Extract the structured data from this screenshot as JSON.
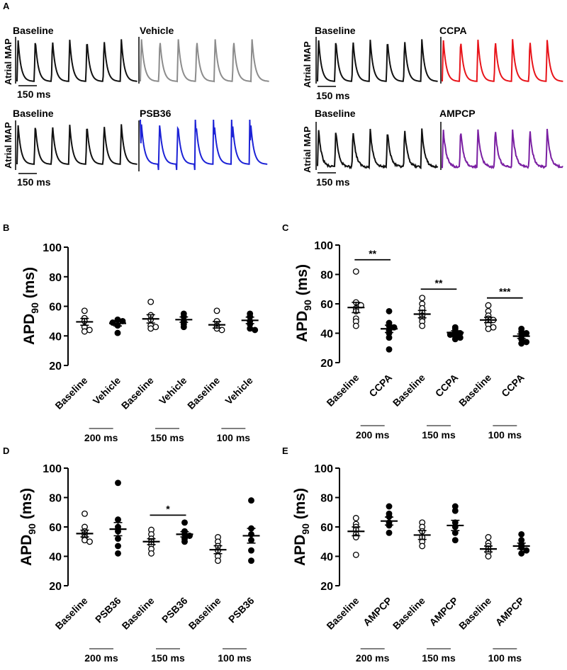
{
  "figure": {
    "panel_a": {
      "letter": "A",
      "y_label": "Atrial MAP",
      "scale_bar": "150 ms",
      "traces": [
        {
          "left_label": "Baseline",
          "right_label": "Vehicle",
          "right_color": "#8c8c8c",
          "style": "smooth"
        },
        {
          "left_label": "Baseline",
          "right_label": "CCPA",
          "right_color": "#e8141a",
          "style": "smooth"
        },
        {
          "left_label": "Baseline",
          "right_label": "PSB36",
          "right_color": "#1c22d6",
          "style": "spiky"
        },
        {
          "left_label": "Baseline",
          "right_label": "AMPCP",
          "right_color": "#7a1fa2",
          "style": "noisy"
        }
      ]
    }
  },
  "chart_data": [
    {
      "panel": "B",
      "type": "scatter",
      "ylabel_main": "APD",
      "ylabel_sub": "90",
      "ylabel_unit": " (ms)",
      "ylim": [
        20,
        100
      ],
      "yticks": [
        20,
        40,
        60,
        80,
        100
      ],
      "categories": [
        "Baseline",
        "Vehicle",
        "Baseline",
        "Vehicle",
        "Baseline",
        "Vehicle"
      ],
      "group_labels": [
        "200 ms",
        "150 ms",
        "100 ms"
      ],
      "series": [
        {
          "name": "Baseline (open)",
          "points": [
            [
              57,
              52,
              50,
              46,
              44,
              43
            ],
            [
              63,
              54,
              51,
              47,
              45,
              46
            ],
            [
              57,
              50,
              47,
              45,
              44
            ]
          ],
          "means": [
            49.5,
            51.5,
            47.5
          ],
          "sems": [
            2.3,
            2.8,
            2.2
          ]
        },
        {
          "name": "Vehicle (filled)",
          "points": [
            [
              51,
              50,
              49,
              47,
              42
            ],
            [
              55,
              53,
              50,
              48,
              46
            ],
            [
              55,
              53,
              50,
              48,
              45,
              44
            ]
          ],
          "means": [
            48.5,
            51,
            50.5
          ],
          "sems": [
            1.8,
            1.8,
            2.2
          ]
        }
      ],
      "significance": []
    },
    {
      "panel": "C",
      "type": "scatter",
      "ylabel_main": "APD",
      "ylabel_sub": "90",
      "ylabel_unit": " (ms)",
      "ylim": [
        20,
        100
      ],
      "yticks": [
        20,
        40,
        60,
        80,
        100
      ],
      "categories": [
        "Baseline",
        "CCPA",
        "Baseline",
        "CCPA",
        "Baseline",
        "CCPA"
      ],
      "group_labels": [
        "200 ms",
        "150 ms",
        "100 ms"
      ],
      "series": [
        {
          "name": "Baseline (open)",
          "points": [
            [
              82,
              61,
              59,
              57,
              55,
              50,
              48,
              45
            ],
            [
              64,
              60,
              57,
              54,
              52,
              50,
              48,
              45
            ],
            [
              59,
              55,
              52,
              50,
              49,
              48,
              46,
              44,
              43
            ]
          ],
          "means": [
            57.5,
            53,
            49
          ],
          "sems": [
            3.5,
            2.5,
            1.8
          ]
        },
        {
          "name": "CCPA (filled)",
          "points": [
            [
              55,
              47,
              45,
              44,
              42,
              40,
              37,
              29
            ],
            [
              44,
              43,
              41,
              40,
              39,
              38,
              37,
              36
            ],
            [
              43,
              41,
              40,
              38,
              36,
              34,
              33
            ]
          ],
          "means": [
            43,
            40.5,
            38
          ],
          "sems": [
            2.5,
            1.2,
            1.5
          ]
        }
      ],
      "significance": [
        {
          "group": 0,
          "label": "**",
          "y": 90
        },
        {
          "group": 1,
          "label": "**",
          "y": 70
        },
        {
          "group": 2,
          "label": "***",
          "y": 64
        }
      ]
    },
    {
      "panel": "D",
      "type": "scatter",
      "ylabel_main": "APD",
      "ylabel_sub": "90",
      "ylabel_unit": " (ms)",
      "ylim": [
        20,
        100
      ],
      "yticks": [
        20,
        40,
        60,
        80,
        100
      ],
      "categories": [
        "Baseline",
        "PSB36",
        "Baseline",
        "PSB36",
        "Baseline",
        "PSB36"
      ],
      "group_labels": [
        "200 ms",
        "150 ms",
        "100 ms"
      ],
      "series": [
        {
          "name": "Baseline (open)",
          "points": [
            [
              69,
              60,
              57,
              55,
              53,
              51,
              50
            ],
            [
              58,
              55,
              52,
              50,
              48,
              45,
              42
            ],
            [
              53,
              50,
              47,
              44,
              40,
              37
            ]
          ],
          "means": [
            55.5,
            50,
            44.5
          ],
          "sems": [
            2.3,
            2.0,
            2.7
          ]
        },
        {
          "name": "PSB36 (filled)",
          "points": [
            [
              90,
              65,
              60,
              57,
              52,
              47,
              42
            ],
            [
              63,
              57,
              55,
              54,
              52,
              50
            ],
            [
              78,
              59,
              55,
              51,
              44,
              37
            ]
          ],
          "means": [
            58.5,
            55,
            54
          ],
          "sems": [
            4.5,
            1.8,
            5.0
          ]
        }
      ],
      "significance": [
        {
          "group": 1,
          "label": "*",
          "y": 68
        }
      ]
    },
    {
      "panel": "E",
      "type": "scatter",
      "ylabel_main": "APD",
      "ylabel_sub": "90",
      "ylabel_unit": " (ms)",
      "ylim": [
        20,
        100
      ],
      "yticks": [
        20,
        40,
        60,
        80,
        100
      ],
      "categories": [
        "Baseline",
        "AMPCP",
        "Baseline",
        "AMPCP",
        "Baseline",
        "AMPCP"
      ],
      "group_labels": [
        "200 ms",
        "150 ms",
        "100 ms"
      ],
      "series": [
        {
          "name": "Baseline (open)",
          "points": [
            [
              66,
              62,
              60,
              58,
              55,
              53,
              41
            ],
            [
              63,
              60,
              57,
              53,
              50,
              47
            ],
            [
              53,
              49,
              47,
              45,
              43,
              40
            ]
          ],
          "means": [
            57,
            54.5,
            45
          ],
          "sems": [
            3.0,
            3.0,
            2.0
          ]
        },
        {
          "name": "AMPCP (filled)",
          "points": [
            [
              74,
              69,
              67,
              63,
              61,
              56
            ],
            [
              74,
              71,
              63,
              60,
              56,
              51
            ],
            [
              55,
              51,
              48,
              46,
              44,
              42
            ]
          ],
          "means": [
            64,
            61,
            47
          ],
          "sems": [
            2.7,
            3.5,
            2.0
          ]
        }
      ],
      "significance": []
    }
  ]
}
